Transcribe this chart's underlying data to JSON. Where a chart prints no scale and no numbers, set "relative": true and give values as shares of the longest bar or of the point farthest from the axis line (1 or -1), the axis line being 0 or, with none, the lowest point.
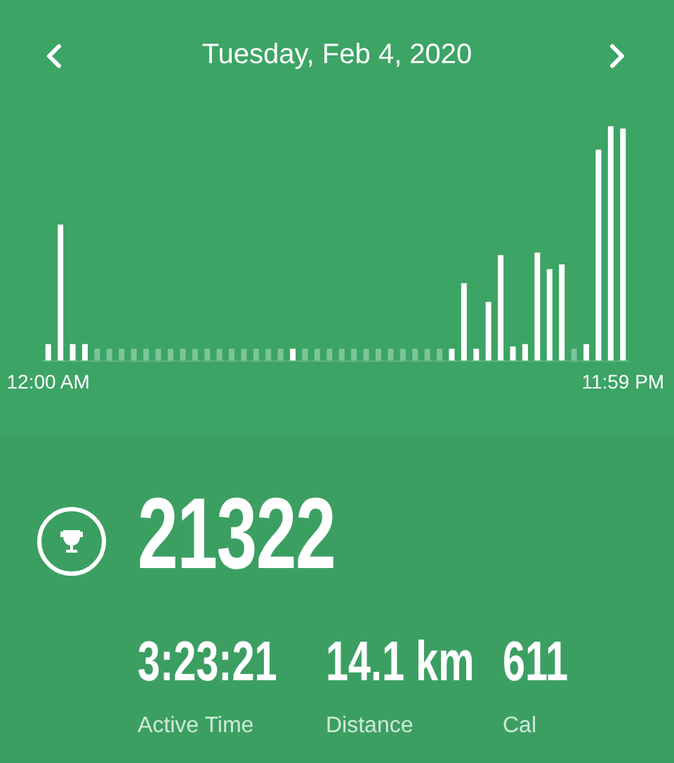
{
  "chart_data": {
    "type": "bar",
    "title": "Tuesday, Feb 4, 2020",
    "relative": true,
    "categories": [
      "12:00 AM",
      null,
      null,
      null,
      null,
      null,
      null,
      null,
      null,
      null,
      null,
      null,
      null,
      null,
      null,
      null,
      null,
      null,
      null,
      null,
      null,
      null,
      null,
      null,
      null,
      null,
      null,
      null,
      null,
      null,
      null,
      null,
      null,
      null,
      null,
      null,
      null,
      null,
      null,
      null,
      null,
      null,
      null,
      null,
      null,
      null,
      null,
      "11:59 PM"
    ],
    "values": [
      0.07,
      0.58,
      0.07,
      0.07,
      0.05,
      0.05,
      0.05,
      0.05,
      0.05,
      0.05,
      0.05,
      0.05,
      0.05,
      0.05,
      0.05,
      0.05,
      0.05,
      0.05,
      0.05,
      0.05,
      0.05,
      0.05,
      0.05,
      0.05,
      0.05,
      0.05,
      0.05,
      0.05,
      0.05,
      0.05,
      0.05,
      0.05,
      0.05,
      0.05,
      0.33,
      0.05,
      0.25,
      0.45,
      0.06,
      0.07,
      0.46,
      0.39,
      0.41,
      0.05,
      0.07,
      0.9,
      1,
      0.99
    ],
    "colors": [
      "#ffffff",
      "#ffffff",
      "#ffffff",
      "#ffffff",
      "#7cc598",
      "#7cc598",
      "#7cc598",
      "#7cc598",
      "#7cc598",
      "#7cc598",
      "#7cc598",
      "#7cc598",
      "#7cc598",
      "#7cc598",
      "#7cc598",
      "#7cc598",
      "#7cc598",
      "#7cc598",
      "#7cc598",
      "#7cc598",
      "#ffffff",
      "#7cc598",
      "#7cc598",
      "#7cc598",
      "#7cc598",
      "#7cc598",
      "#7cc598",
      "#7cc598",
      "#7cc598",
      "#7cc598",
      "#7cc598",
      "#7cc598",
      "#7cc598",
      "#ffffff",
      "#ffffff",
      "#ffffff",
      "#ffffff",
      "#ffffff",
      "#ffffff",
      "#ffffff",
      "#ffffff",
      "#ffffff",
      "#ffffff",
      "#7cc598",
      "#ffffff",
      "#ffffff",
      "#ffffff",
      "#ffffff"
    ],
    "annotations": [
      "21322",
      "3:23:21",
      "Active Time",
      "14.1 km",
      "Distance",
      "611",
      "Cal"
    ]
  }
}
